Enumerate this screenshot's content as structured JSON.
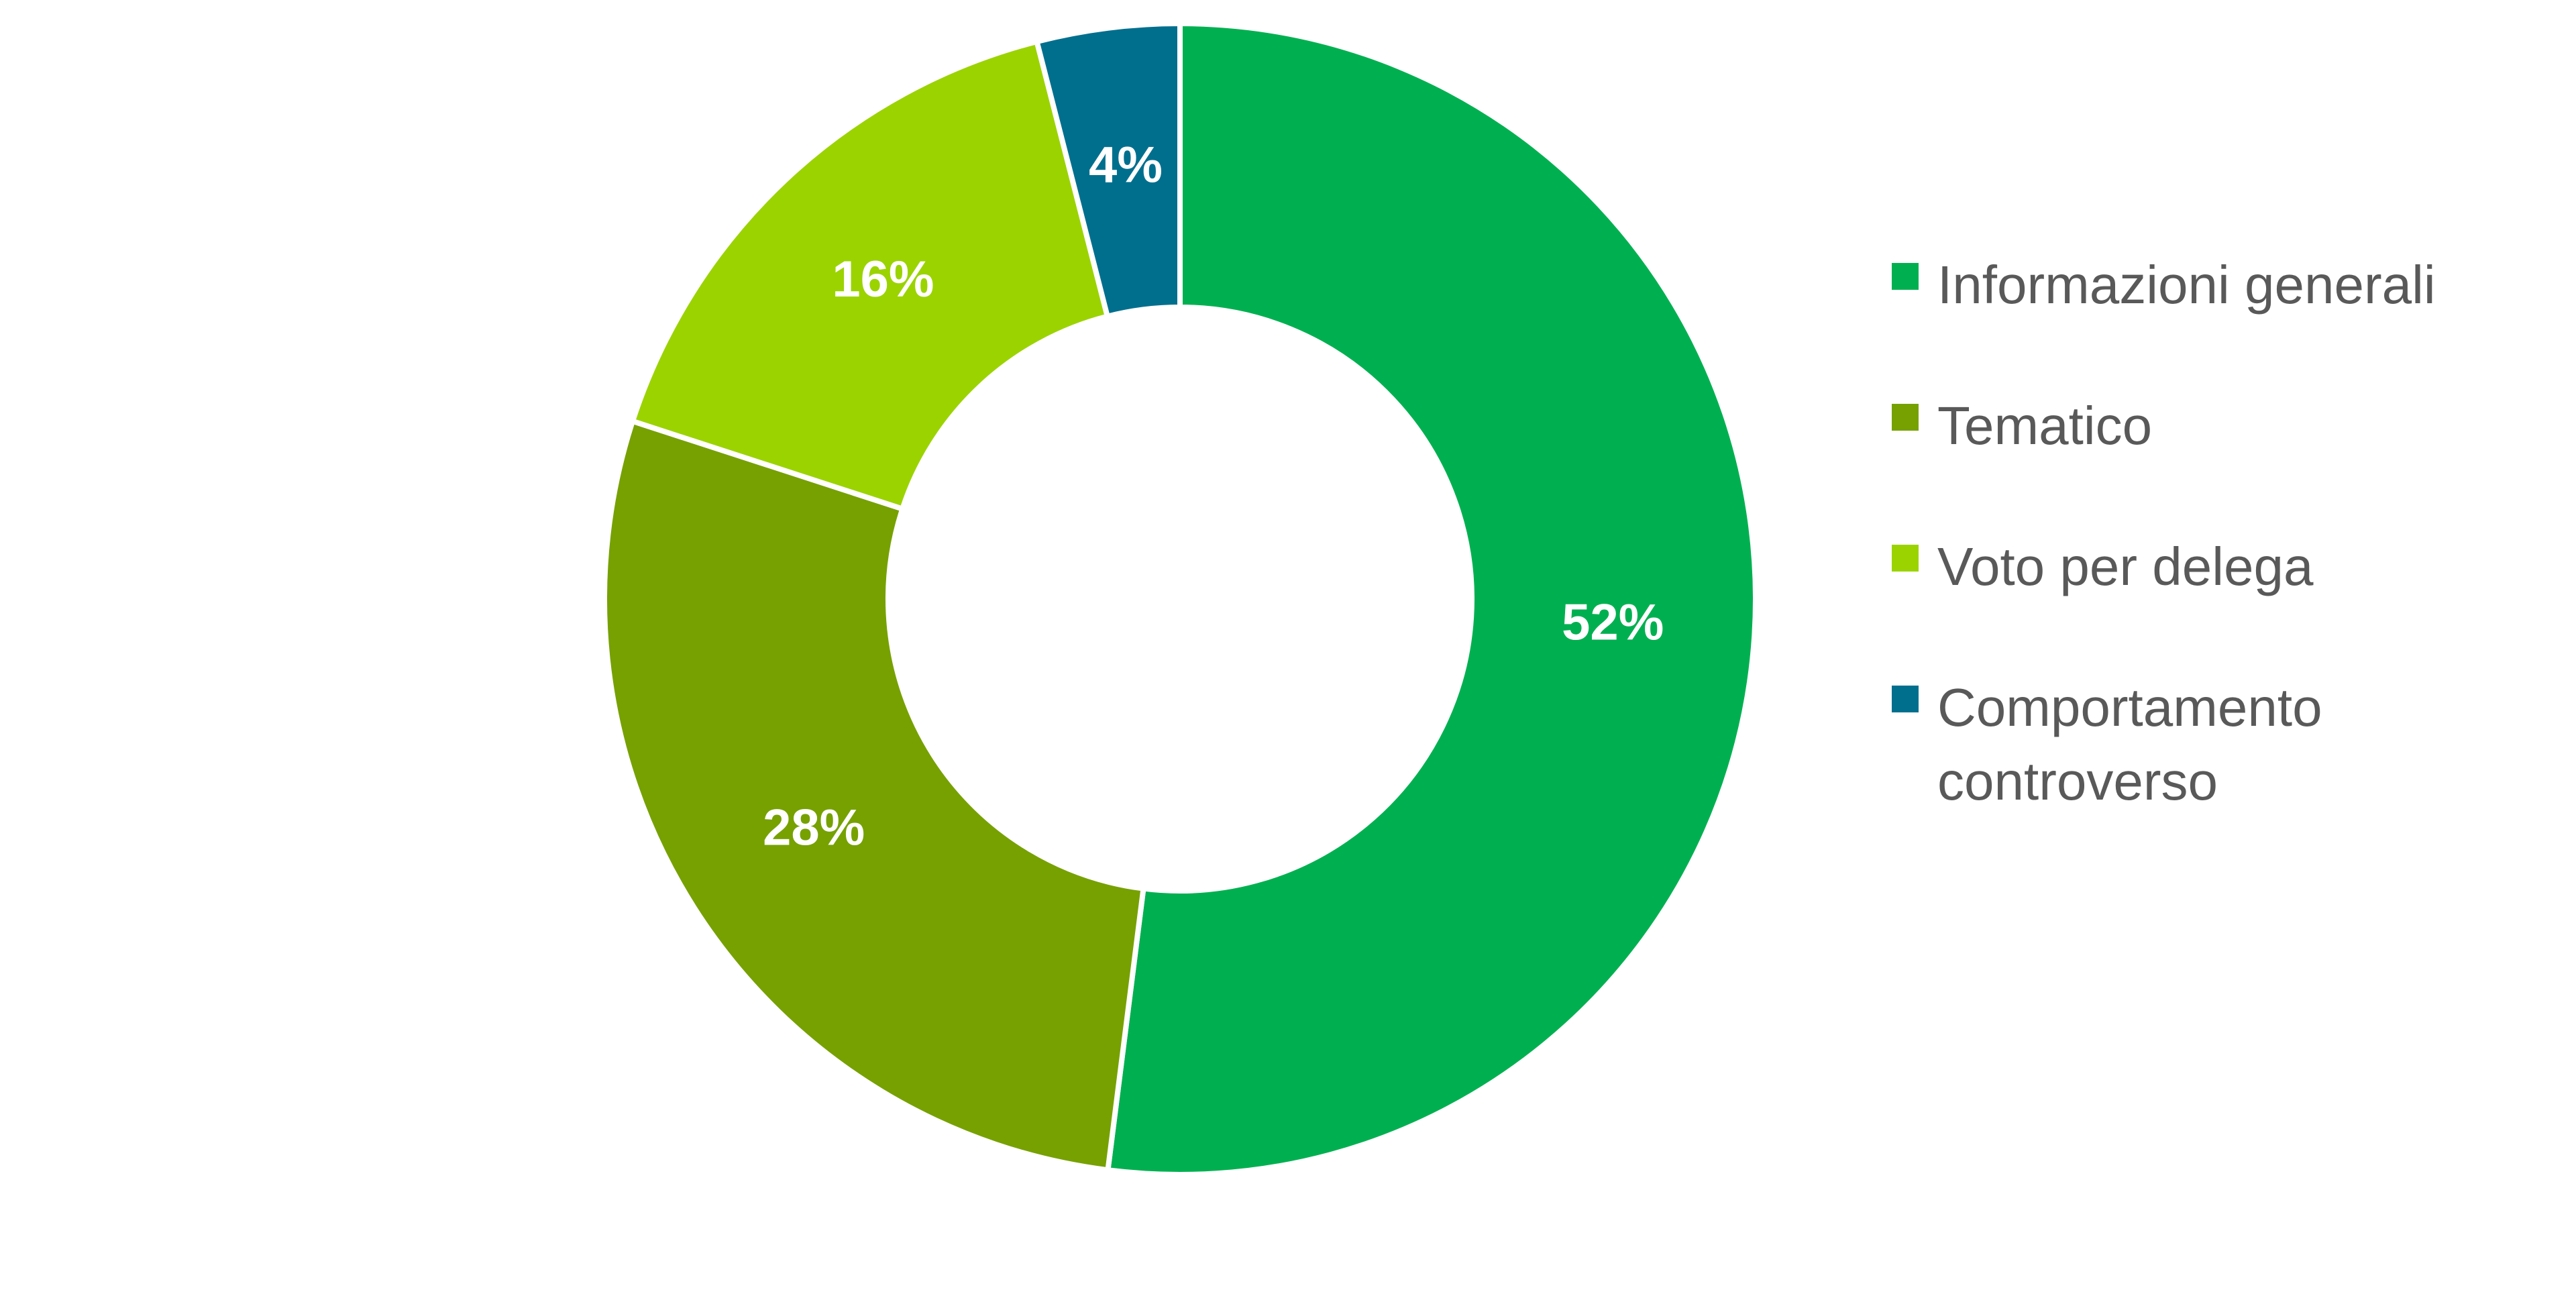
{
  "chart_data": {
    "type": "donut",
    "categories": [
      "Informazioni generali",
      "Tematico",
      "Voto per delega",
      "Comportamento controverso"
    ],
    "values": [
      52,
      28,
      16,
      4
    ],
    "value_labels": [
      "52%",
      "28%",
      "16%",
      "4%"
    ],
    "colors": [
      "#00b050",
      "#76a100",
      "#9bd300",
      "#006f8e"
    ],
    "legend": "right"
  }
}
